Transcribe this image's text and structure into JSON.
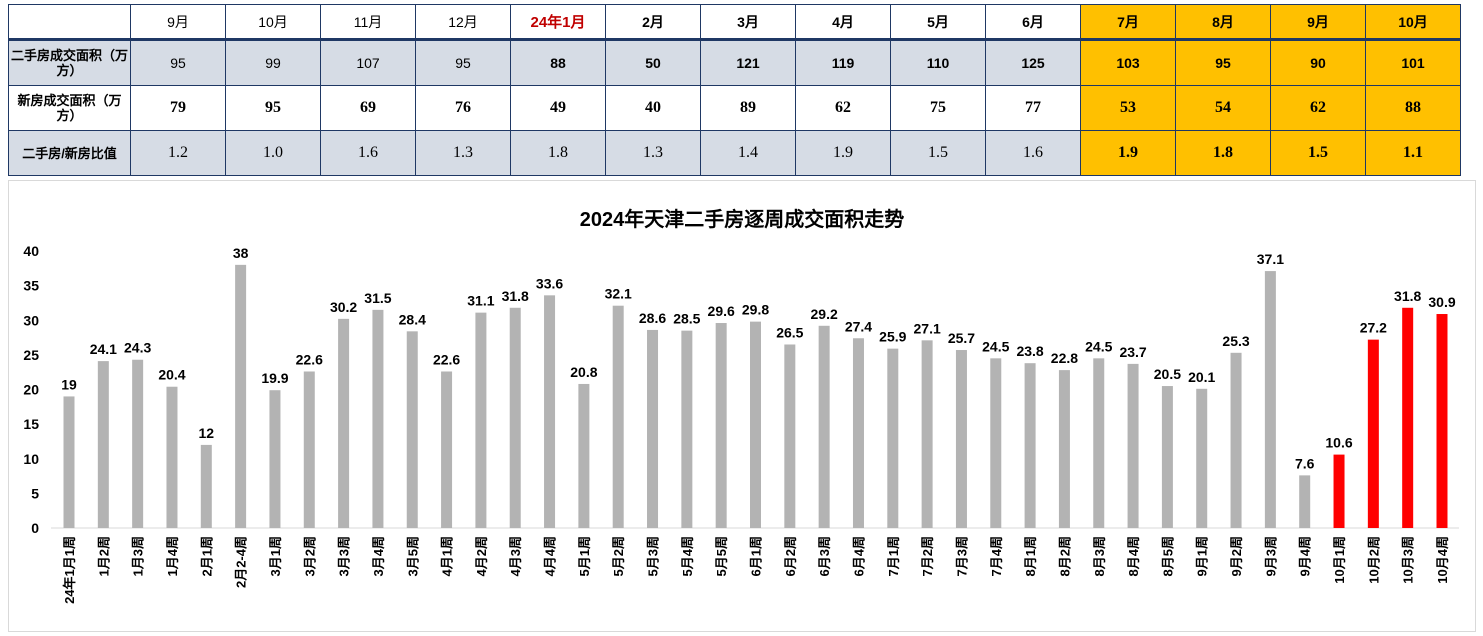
{
  "table": {
    "headers": [
      "9月",
      "10月",
      "11月",
      "12月",
      "24年1月",
      "2月",
      "3月",
      "4月",
      "5月",
      "6月",
      "7月",
      "8月",
      "9月",
      "10月"
    ],
    "rows": [
      {
        "label": "二手房成交面积（万方）",
        "values": [
          "95",
          "99",
          "107",
          "95",
          "88",
          "50",
          "121",
          "119",
          "110",
          "125",
          "103",
          "95",
          "90",
          "101"
        ]
      },
      {
        "label": "新房成交面积（万方）",
        "values": [
          "79",
          "95",
          "69",
          "76",
          "49",
          "40",
          "89",
          "62",
          "75",
          "77",
          "53",
          "54",
          "62",
          "88"
        ]
      },
      {
        "label": "二手房/新房比值",
        "values": [
          "1.2",
          "1.0",
          "1.6",
          "1.3",
          "1.8",
          "1.3",
          "1.4",
          "1.9",
          "1.5",
          "1.6",
          "1.9",
          "1.8",
          "1.5",
          "1.1"
        ]
      }
    ]
  },
  "colors": {
    "bar": "#b3b3b3",
    "highlight": "#ff0000",
    "yellow": "#ffc000",
    "shade": "#d6dce5",
    "accent": "#c00000"
  },
  "chart_data": {
    "type": "bar",
    "title": "2024年天津二手房逐周成交面积走势",
    "xlabel": "",
    "ylabel": "",
    "ylim": [
      0,
      40
    ],
    "yticks": [
      "0",
      "5",
      "10",
      "15",
      "20",
      "25",
      "30",
      "35",
      "40"
    ],
    "grid": false,
    "categories": [
      "24年1月1周",
      "1月2周",
      "1月3周",
      "1月4周",
      "2月1周",
      "2月2-4周",
      "3月1周",
      "3月2周",
      "3月3周",
      "3月4周",
      "3月5周",
      "4月1周",
      "4月2周",
      "4月3周",
      "4月4周",
      "5月1周",
      "5月2周",
      "5月3周",
      "5月4周",
      "5月5周",
      "6月1周",
      "6月2周",
      "6月3周",
      "6月4周",
      "7月1周",
      "7月2周",
      "7月3周",
      "7月4周",
      "8月1周",
      "8月2周",
      "8月3周",
      "8月4周",
      "8月5周",
      "9月1周",
      "9月2周",
      "9月3周",
      "9月4周",
      "10月1周",
      "10月2周",
      "10月3周",
      "10月4周"
    ],
    "values": [
      19,
      24.1,
      24.3,
      20.4,
      12,
      38,
      19.9,
      22.6,
      30.2,
      31.5,
      28.4,
      22.6,
      31.1,
      31.8,
      33.6,
      20.8,
      32.1,
      28.6,
      28.5,
      29.6,
      29.8,
      26.5,
      29.2,
      27.4,
      25.9,
      27.1,
      25.7,
      24.5,
      23.8,
      22.8,
      24.5,
      23.7,
      20.5,
      20.1,
      25.3,
      37.1,
      7.6,
      10.6,
      27.2,
      31.8,
      30.9
    ],
    "highlighted_from_index": 37
  }
}
